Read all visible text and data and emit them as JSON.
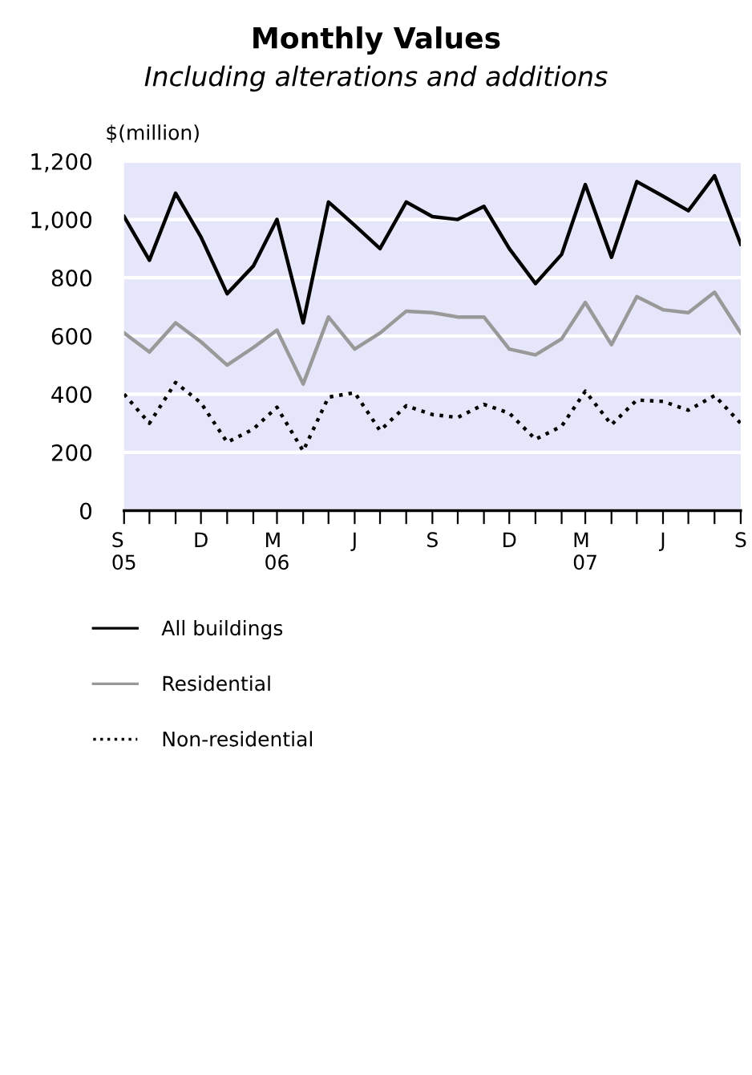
{
  "chart_data": {
    "type": "line",
    "title": "Monthly Values",
    "subtitle": "Including alterations and additions",
    "ylabel": "$(million)",
    "x": [
      "2005-09",
      "2005-10",
      "2005-11",
      "2005-12",
      "2006-01",
      "2006-02",
      "2006-03",
      "2006-04",
      "2006-05",
      "2006-06",
      "2006-07",
      "2006-08",
      "2006-09",
      "2006-10",
      "2006-11",
      "2006-12",
      "2007-01",
      "2007-02",
      "2007-03",
      "2007-04",
      "2007-05",
      "2007-06",
      "2007-07",
      "2007-08",
      "2007-09"
    ],
    "series": [
      {
        "name": "All buildings",
        "color": "#000000",
        "line_style": "solid",
        "values": [
          1010,
          860,
          1090,
          940,
          745,
          840,
          1000,
          645,
          1060,
          980,
          900,
          1060,
          1010,
          1000,
          1045,
          900,
          780,
          880,
          1120,
          870,
          1130,
          1080,
          1030,
          1150,
          915
        ]
      },
      {
        "name": "Residential",
        "color": "#999999",
        "line_style": "solid",
        "values": [
          610,
          545,
          645,
          580,
          500,
          560,
          620,
          435,
          665,
          555,
          610,
          685,
          680,
          665,
          665,
          555,
          535,
          590,
          715,
          570,
          735,
          690,
          680,
          750,
          610
        ]
      },
      {
        "name": "Non-residential",
        "color": "#000000",
        "line_style": "dotted",
        "values": [
          400,
          300,
          440,
          370,
          235,
          280,
          355,
          205,
          390,
          405,
          275,
          360,
          330,
          320,
          365,
          335,
          245,
          290,
          410,
          295,
          380,
          375,
          345,
          395,
          300
        ]
      }
    ],
    "xlim": [
      "2005-09",
      "2007-09"
    ],
    "xticks": [
      {
        "value": "2005-09",
        "label": "S\n05"
      },
      {
        "value": "2005-10",
        "label": null
      },
      {
        "value": "2005-11",
        "label": null
      },
      {
        "value": "2005-12",
        "label": "D"
      },
      {
        "value": "2006-01",
        "label": null
      },
      {
        "value": "2006-02",
        "label": null
      },
      {
        "value": "2006-03",
        "label": "M\n06"
      },
      {
        "value": "2006-04",
        "label": null
      },
      {
        "value": "2006-05",
        "label": null
      },
      {
        "value": "2006-06",
        "label": "J"
      },
      {
        "value": "2006-07",
        "label": null
      },
      {
        "value": "2006-08",
        "label": null
      },
      {
        "value": "2006-09",
        "label": "S"
      },
      {
        "value": "2006-10",
        "label": null
      },
      {
        "value": "2006-11",
        "label": null
      },
      {
        "value": "2006-12",
        "label": "D"
      },
      {
        "value": "2007-01",
        "label": null
      },
      {
        "value": "2007-02",
        "label": null
      },
      {
        "value": "2007-03",
        "label": "M\n07"
      },
      {
        "value": "2007-04",
        "label": null
      },
      {
        "value": "2007-05",
        "label": null
      },
      {
        "value": "2007-06",
        "label": "J"
      },
      {
        "value": "2007-07",
        "label": null
      },
      {
        "value": "2007-08",
        "label": null
      },
      {
        "value": "2007-09",
        "label": "S"
      }
    ],
    "ylim": [
      0,
      1200
    ],
    "yticks": [
      0,
      200,
      400,
      600,
      800,
      {
        "value": 1000,
        "label": "1,000"
      },
      {
        "value": 1200,
        "label": "1,200"
      }
    ],
    "grid": "y",
    "legend": "bottom",
    "marker": "none"
  }
}
